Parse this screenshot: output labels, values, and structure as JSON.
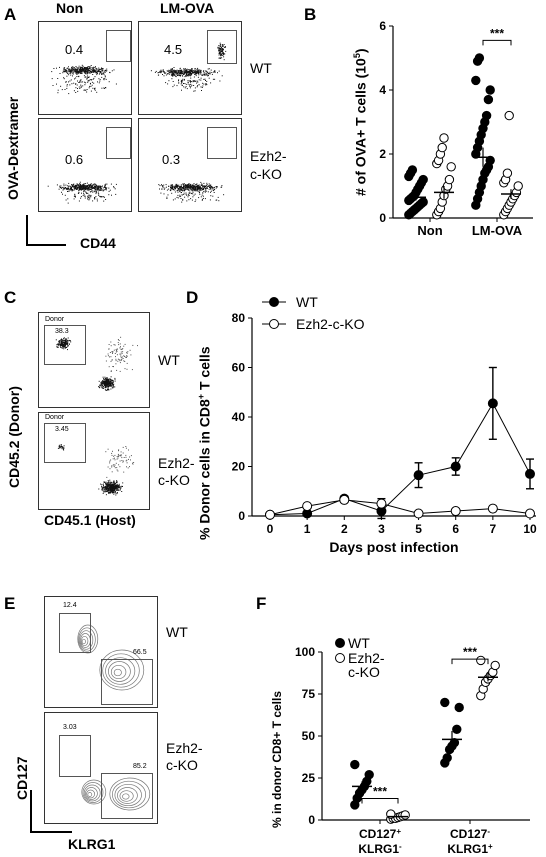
{
  "panels": {
    "A": {
      "letter": "A",
      "col_labels": [
        "Non",
        "LM-OVA"
      ],
      "row_labels": [
        "WT",
        "Ezh2-",
        "c-KO"
      ],
      "y_axis": "OVA-Dextramer",
      "x_axis": "CD44",
      "gate_values": [
        "0.4",
        "4.5",
        "0.6",
        "0.3"
      ]
    },
    "B": {
      "letter": "B",
      "y_axis": "# of OVA+ T cells (10",
      "y_axis_sup": "5",
      "y_axis_end": ")",
      "sig": "***"
    },
    "C": {
      "letter": "C",
      "y_axis": "CD45.2 (Donor)",
      "x_axis": "CD45.1 (Host)",
      "row_labels": [
        "WT",
        "Ezh2-",
        "c-KO"
      ],
      "gate_name": "Donor",
      "gate_values": [
        "38.3",
        "3.45"
      ]
    },
    "D": {
      "letter": "D",
      "y_axis_pre": "% Donor cells in CD8",
      "y_axis_sup": "+",
      "y_axis_post": " T cells",
      "legend": [
        "WT",
        "Ezh2-c-KO"
      ]
    },
    "E": {
      "letter": "E",
      "y_axis": "CD127",
      "x_axis": "KLRG1",
      "row_labels": [
        "WT",
        "Ezh2-",
        "c-KO"
      ],
      "gate_values": [
        "12.4",
        "66.5",
        "3.03",
        "85.2"
      ]
    },
    "F": {
      "letter": "F",
      "y_axis": "% in donor CD8+ T cells",
      "legend": [
        "WT",
        "Ezh2-",
        "c-KO"
      ],
      "sig": [
        "***",
        "***"
      ],
      "cat1_line1": "CD127",
      "cat1_sup1": "+",
      "cat1_line2": "KLRG1",
      "cat1_sup2": "-",
      "cat2_line1": "CD127",
      "cat2_sup1": "-",
      "cat2_line2": "KLRG1",
      "cat2_sup2": "+"
    }
  },
  "chart_data": [
    {
      "panel": "B",
      "type": "scatter",
      "categories": [
        "Non",
        "LM-OVA"
      ],
      "ylim": [
        0,
        6
      ],
      "yticks": [
        0,
        2,
        4,
        6
      ],
      "series": [
        {
          "name": "WT",
          "marker": "filled",
          "groups": [
            {
              "category": "Non",
              "mean": 0.65,
              "sem": 0.1,
              "points": [
                0.1,
                0.15,
                0.2,
                0.25,
                0.3,
                0.35,
                0.4,
                0.45,
                0.5,
                0.55,
                0.6,
                0.65,
                0.7,
                0.8,
                0.9,
                1.0,
                1.1,
                1.2,
                1.3,
                1.4,
                1.5
              ]
            },
            {
              "category": "LM-OVA",
              "mean": 1.9,
              "sem": 0.3,
              "points": [
                0.4,
                0.6,
                0.8,
                1.0,
                1.2,
                1.4,
                1.5,
                1.6,
                1.8,
                2.0,
                2.2,
                2.4,
                2.6,
                2.8,
                3.0,
                3.2,
                3.7,
                4.0,
                4.3,
                4.9,
                5.0
              ]
            }
          ]
        },
        {
          "name": "Ezh2-c-KO",
          "marker": "open",
          "groups": [
            {
              "category": "Non",
              "mean": 0.8,
              "sem": 0.2,
              "points": [
                0.1,
                0.2,
                0.3,
                0.5,
                0.7,
                0.9,
                1.0,
                1.2,
                1.6,
                1.7,
                1.8,
                2.0,
                2.2,
                2.5
              ]
            },
            {
              "category": "LM-OVA",
              "mean": 0.75,
              "sem": 0.15,
              "points": [
                0.1,
                0.2,
                0.3,
                0.4,
                0.5,
                0.6,
                0.7,
                0.8,
                1.0,
                1.1,
                1.2,
                1.4,
                3.2
              ]
            }
          ]
        }
      ]
    },
    {
      "panel": "D",
      "type": "line",
      "x": [
        "0",
        "1",
        "2",
        "3",
        "5",
        "6",
        "7",
        "10"
      ],
      "ylim": [
        0,
        80
      ],
      "yticks": [
        0,
        20,
        40,
        60,
        80
      ],
      "xlabel": "Days post infection",
      "series": [
        {
          "name": "WT",
          "values": [
            0.5,
            1,
            7,
            2,
            16.5,
            20,
            45.5,
            17
          ],
          "err": [
            0,
            0,
            1,
            3,
            5,
            3.5,
            14.5,
            6
          ]
        },
        {
          "name": "Ezh2-c-KO",
          "values": [
            0.5,
            4,
            6.5,
            5,
            1,
            2,
            3,
            1
          ],
          "err": [
            0,
            0,
            1,
            2,
            0,
            0,
            0,
            0
          ]
        }
      ]
    },
    {
      "panel": "F",
      "type": "scatter",
      "ylim": [
        0,
        100
      ],
      "yticks": [
        0,
        25,
        50,
        75,
        100
      ],
      "series": [
        {
          "name": "WT",
          "marker": "filled",
          "groups": [
            {
              "category": "CD127+ KLRG1-",
              "mean": 20,
              "sem": 3,
              "points": [
                9,
                13,
                16,
                18,
                20,
                23,
                27,
                33
              ]
            },
            {
              "category": "CD127- KLRG1+",
              "mean": 48,
              "sem": 5,
              "points": [
                34,
                37,
                42,
                44,
                46,
                54,
                67,
                70
              ]
            }
          ]
        },
        {
          "name": "Ezh2-c-KO",
          "marker": "open",
          "groups": [
            {
              "category": "CD127+ KLRG1-",
              "mean": 2,
              "sem": 0.5,
              "points": [
                0.5,
                1,
                1,
                1.5,
                2,
                2.5,
                3,
                3.5
              ]
            },
            {
              "category": "CD127- KLRG1+",
              "mean": 85,
              "sem": 2.5,
              "points": [
                74,
                78,
                82,
                84,
                86,
                88,
                92,
                95
              ]
            }
          ]
        }
      ]
    }
  ]
}
